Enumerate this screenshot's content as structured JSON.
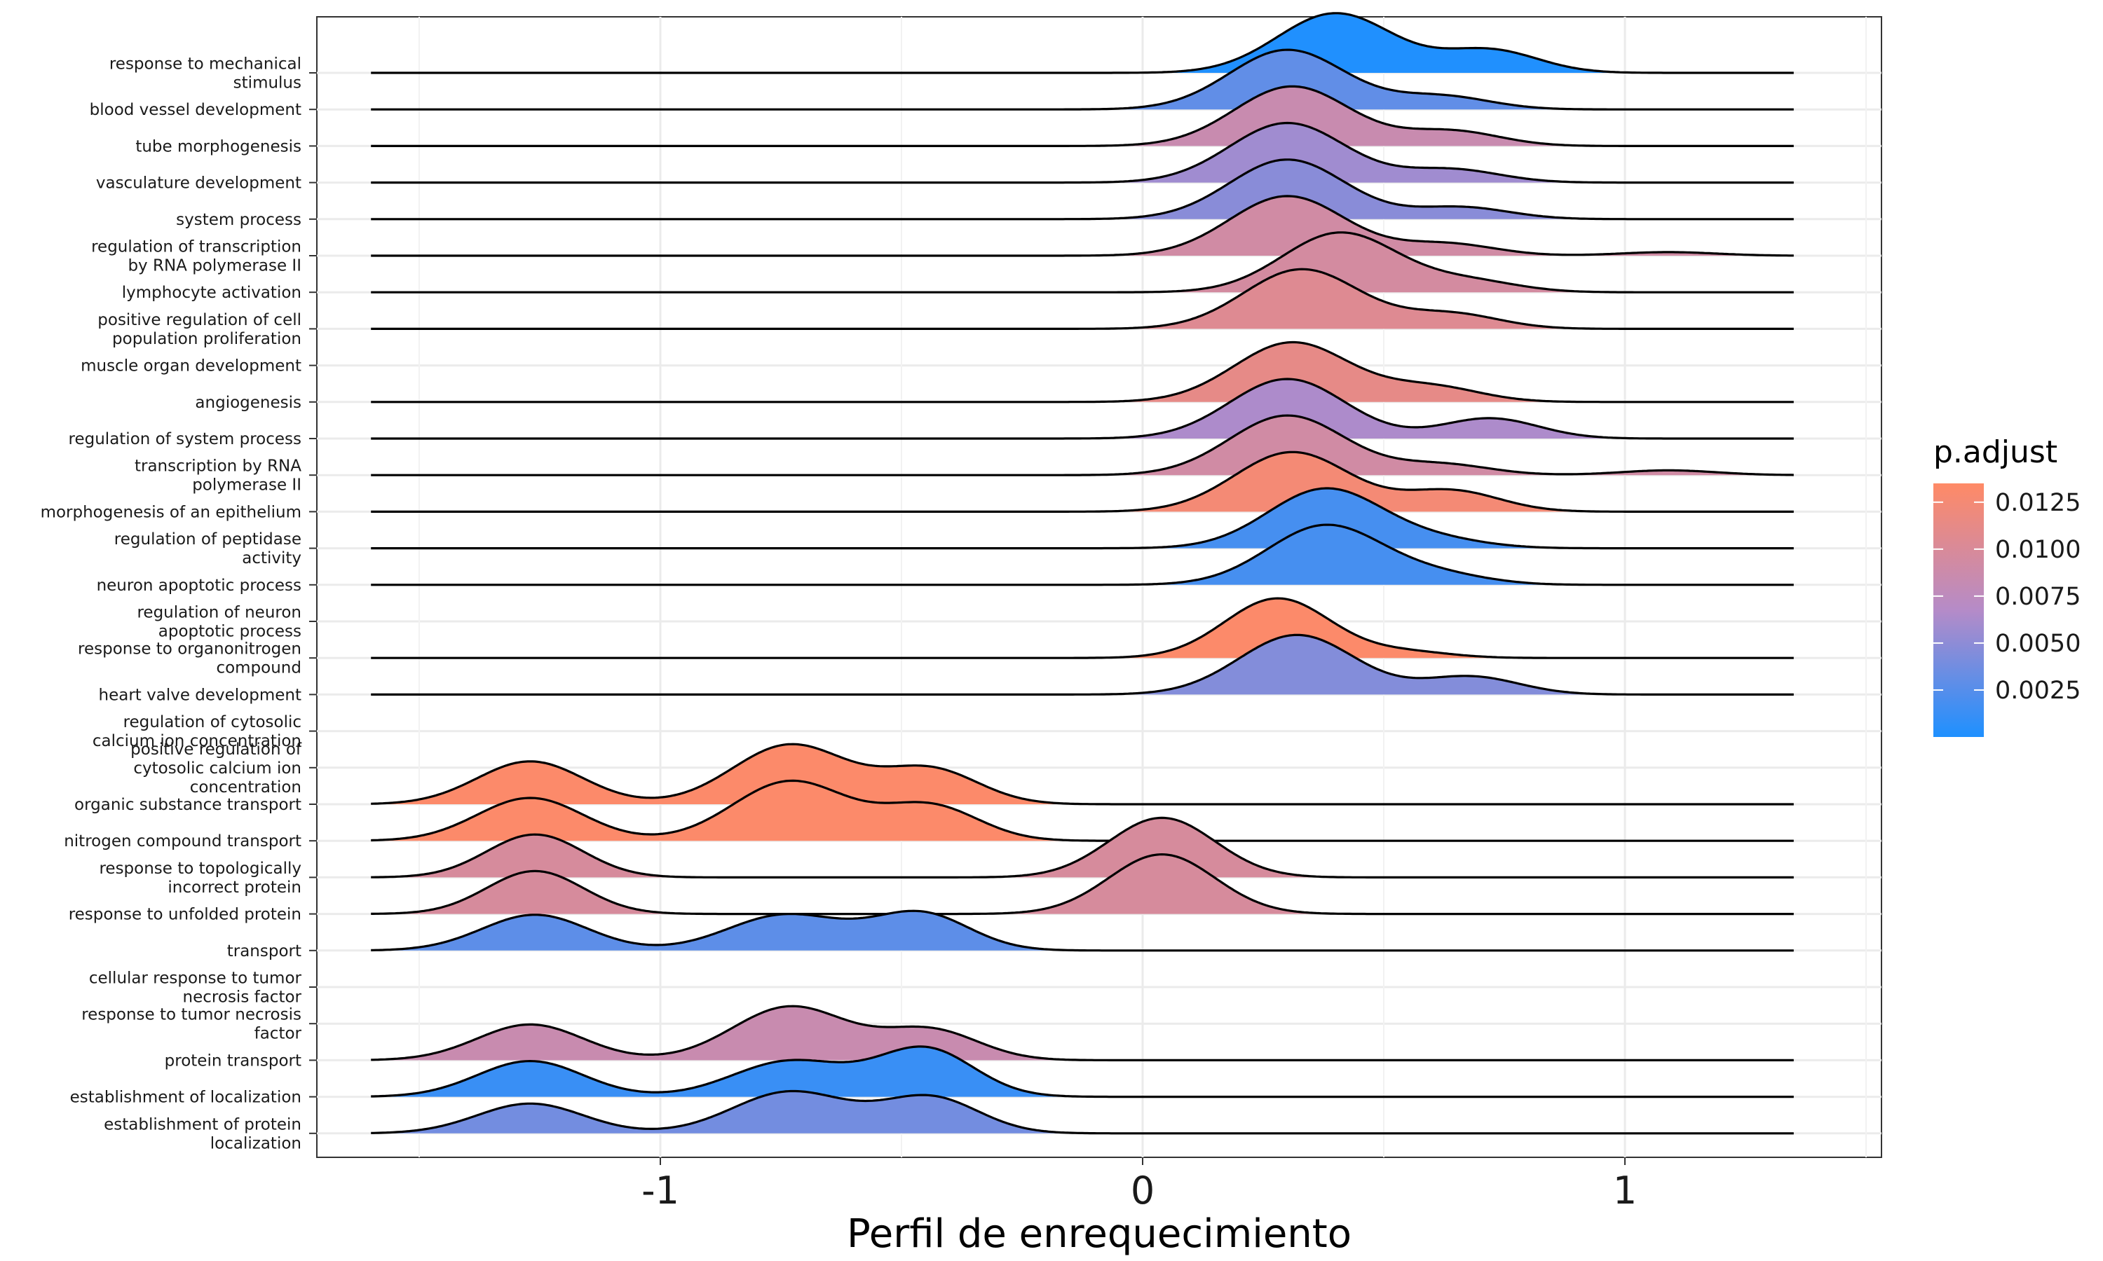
{
  "chart_data": {
    "type": "ridgeline",
    "xlabel": "Perfil de enrequecimiento",
    "xlim": [
      -1.7,
      1.55
    ],
    "xticks": [
      -1,
      0,
      1
    ],
    "xtick_labels": [
      "-1",
      "0",
      "1"
    ],
    "grid": true,
    "legend": {
      "title": "p.adjust",
      "position": "right",
      "min": 0.0,
      "max": 0.0135,
      "ticks": [
        0.0125,
        0.01,
        0.0075,
        0.005,
        0.0025
      ],
      "tick_labels": [
        "0.0125",
        "0.0100",
        "0.0075",
        "0.0050",
        "0.0025"
      ],
      "color_low": "#1E90FF",
      "color_mid": "#B58BC8",
      "color_high": "#FF8A66"
    },
    "categories": [
      [
        "response to mechanical",
        "stimulus"
      ],
      [
        "blood vessel development"
      ],
      [
        "tube morphogenesis"
      ],
      [
        "vasculature development"
      ],
      [
        "system process"
      ],
      [
        "regulation of transcription",
        "by RNA polymerase II"
      ],
      [
        "lymphocyte activation"
      ],
      [
        "positive regulation of cell",
        "population proliferation"
      ],
      [
        "muscle organ development"
      ],
      [
        "angiogenesis"
      ],
      [
        "regulation of system process"
      ],
      [
        "transcription by RNA",
        "polymerase II"
      ],
      [
        "morphogenesis of an epithelium"
      ],
      [
        "regulation of peptidase",
        "activity"
      ],
      [
        "neuron apoptotic process"
      ],
      [
        "regulation of neuron",
        "apoptotic process"
      ],
      [
        "response to organonitrogen",
        "compound"
      ],
      [
        "heart valve development"
      ],
      [
        "regulation of cytosolic",
        "calcium ion concentration"
      ],
      [
        "positive regulation of",
        "cytosolic calcium ion",
        "concentration"
      ],
      [
        "organic substance transport"
      ],
      [
        "nitrogen compound transport"
      ],
      [
        "response to topologically",
        "incorrect protein"
      ],
      [
        "response to unfolded protein"
      ],
      [
        "transport"
      ],
      [
        "cellular response to tumor",
        "necrosis factor"
      ],
      [
        "response to tumor necrosis",
        "factor"
      ],
      [
        "protein transport"
      ],
      [
        "establishment of localization"
      ],
      [
        "establishment of protein",
        "localization"
      ]
    ],
    "series": [
      {
        "p_adjust": 0.0001,
        "peaks": [
          [
            0.4,
            0.12,
            1.0
          ],
          [
            0.72,
            0.1,
            0.38
          ]
        ]
      },
      {
        "p_adjust": 0.003,
        "peaks": [
          [
            0.3,
            0.12,
            1.0
          ],
          [
            0.62,
            0.1,
            0.22
          ]
        ]
      },
      {
        "p_adjust": 0.0085,
        "peaks": [
          [
            0.31,
            0.12,
            1.0
          ],
          [
            0.64,
            0.1,
            0.25
          ]
        ]
      },
      {
        "p_adjust": 0.0058,
        "peaks": [
          [
            0.3,
            0.12,
            1.0
          ],
          [
            0.64,
            0.1,
            0.22
          ]
        ]
      },
      {
        "p_adjust": 0.0048,
        "peaks": [
          [
            0.3,
            0.12,
            1.0
          ],
          [
            0.66,
            0.1,
            0.2
          ]
        ]
      },
      {
        "p_adjust": 0.0092,
        "peaks": [
          [
            0.3,
            0.12,
            1.0
          ],
          [
            0.63,
            0.1,
            0.2
          ],
          [
            1.09,
            0.1,
            0.06
          ]
        ]
      },
      {
        "p_adjust": 0.0095,
        "peaks": [
          [
            0.41,
            0.12,
            1.0
          ],
          [
            0.68,
            0.1,
            0.18
          ]
        ]
      },
      {
        "p_adjust": 0.0105,
        "peaks": [
          [
            0.33,
            0.12,
            1.0
          ],
          [
            0.64,
            0.1,
            0.25
          ]
        ]
      },
      {
        "p_adjust": 0.0095,
        "peaks": []
      },
      {
        "p_adjust": 0.0112,
        "peaks": [
          [
            0.31,
            0.12,
            1.0
          ],
          [
            0.6,
            0.1,
            0.25
          ]
        ]
      },
      {
        "p_adjust": 0.0064,
        "peaks": [
          [
            0.3,
            0.12,
            1.0
          ],
          [
            0.72,
            0.1,
            0.34
          ]
        ]
      },
      {
        "p_adjust": 0.0092,
        "peaks": [
          [
            0.3,
            0.12,
            1.0
          ],
          [
            0.62,
            0.1,
            0.18
          ],
          [
            1.09,
            0.1,
            0.08
          ]
        ]
      },
      {
        "p_adjust": 0.0125,
        "peaks": [
          [
            0.31,
            0.12,
            1.0
          ],
          [
            0.64,
            0.1,
            0.35
          ]
        ]
      },
      {
        "p_adjust": 0.0018,
        "peaks": [
          [
            0.38,
            0.12,
            1.0
          ],
          [
            0.62,
            0.1,
            0.12
          ]
        ]
      },
      {
        "p_adjust": 0.0018,
        "peaks": [
          [
            0.38,
            0.12,
            1.0
          ],
          [
            0.62,
            0.1,
            0.15
          ]
        ]
      },
      {
        "p_adjust": 0.0018,
        "peaks": []
      },
      {
        "p_adjust": 0.0132,
        "peaks": [
          [
            0.28,
            0.11,
            1.0
          ],
          [
            0.55,
            0.09,
            0.1
          ]
        ]
      },
      {
        "p_adjust": 0.0045,
        "peaks": [
          [
            0.32,
            0.12,
            1.0
          ],
          [
            0.68,
            0.1,
            0.3
          ]
        ]
      },
      {
        "p_adjust": 0.0,
        "peaks": []
      },
      {
        "p_adjust": 0.0,
        "peaks": []
      },
      {
        "p_adjust": 0.0132,
        "peaks": [
          [
            -1.27,
            0.11,
            0.72
          ],
          [
            -0.73,
            0.12,
            1.0
          ],
          [
            -0.44,
            0.1,
            0.58
          ]
        ]
      },
      {
        "p_adjust": 0.0132,
        "peaks": [
          [
            -1.27,
            0.11,
            0.72
          ],
          [
            -0.73,
            0.12,
            1.0
          ],
          [
            -0.44,
            0.1,
            0.58
          ]
        ]
      },
      {
        "p_adjust": 0.0098,
        "peaks": [
          [
            -1.26,
            0.1,
            0.72
          ],
          [
            0.04,
            0.11,
            1.0
          ]
        ]
      },
      {
        "p_adjust": 0.0098,
        "peaks": [
          [
            -1.26,
            0.1,
            0.72
          ],
          [
            0.04,
            0.11,
            1.0
          ]
        ]
      },
      {
        "p_adjust": 0.0028,
        "peaks": [
          [
            -1.26,
            0.11,
            0.6
          ],
          [
            -0.74,
            0.12,
            0.6
          ],
          [
            -0.46,
            0.1,
            0.62
          ]
        ]
      },
      {
        "p_adjust": 0.0,
        "peaks": []
      },
      {
        "p_adjust": 0.0,
        "peaks": []
      },
      {
        "p_adjust": 0.0085,
        "peaks": [
          [
            -1.27,
            0.11,
            0.6
          ],
          [
            -0.73,
            0.12,
            0.9
          ],
          [
            -0.44,
            0.1,
            0.5
          ]
        ]
      },
      {
        "p_adjust": 0.0012,
        "peaks": [
          [
            -1.27,
            0.11,
            0.6
          ],
          [
            -0.73,
            0.12,
            0.6
          ],
          [
            -0.45,
            0.1,
            0.8
          ]
        ]
      },
      {
        "p_adjust": 0.0038,
        "peaks": [
          [
            -1.27,
            0.11,
            0.5
          ],
          [
            -0.73,
            0.12,
            0.7
          ],
          [
            -0.44,
            0.1,
            0.6
          ]
        ]
      }
    ]
  }
}
